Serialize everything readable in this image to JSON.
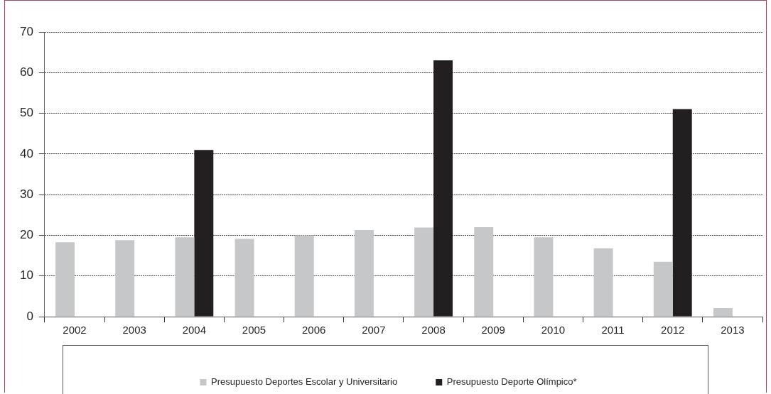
{
  "chart_data": {
    "type": "bar",
    "categories": [
      "2002",
      "2003",
      "2004",
      "2005",
      "2006",
      "2007",
      "2008",
      "2009",
      "2010",
      "2011",
      "2012",
      "2013"
    ],
    "series": [
      {
        "name": "Presupuesto Deportes Escolar y Universitario",
        "color": "#c6c7c9",
        "values": [
          18.3,
          18.8,
          19.5,
          19.1,
          20.0,
          21.3,
          21.9,
          22.0,
          19.5,
          16.8,
          13.5,
          2.1
        ]
      },
      {
        "name": "Presupuesto Deporte Olímpico*",
        "color": "#231f20",
        "values": [
          null,
          null,
          41,
          null,
          null,
          null,
          63,
          null,
          null,
          null,
          51,
          null
        ]
      }
    ],
    "ylim": [
      0,
      70
    ],
    "yticks": [
      0,
      10,
      20,
      30,
      40,
      50,
      60,
      70
    ],
    "grid": "y",
    "legend": "bottom"
  }
}
